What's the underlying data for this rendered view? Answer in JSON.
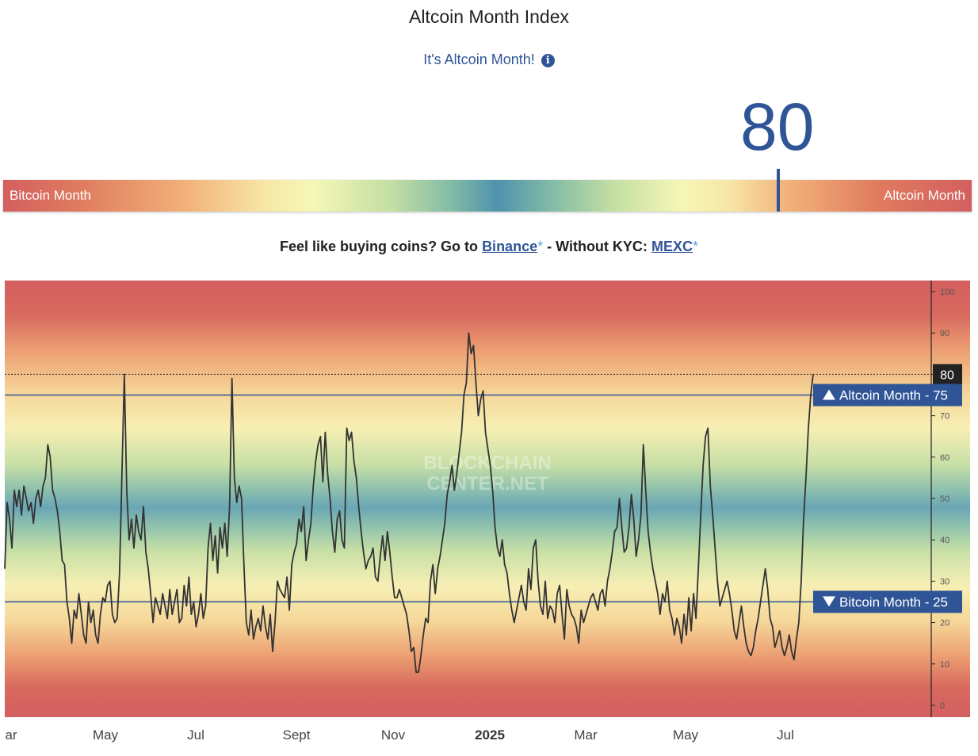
{
  "header": {
    "title": "Altcoin Month Index",
    "subtitle": "It's Altcoin Month!",
    "info_icon": "info-icon",
    "index_value": "80"
  },
  "gauge": {
    "left_label": "Bitcoin Month",
    "right_label": "Altcoin Month",
    "value": 80,
    "range": [
      0,
      100
    ]
  },
  "promo": {
    "prefix": "Feel like buying coins? Go to",
    "binance": "Binance",
    "star": "*",
    "middle": "- Without KYC:",
    "mexc": "MEXC"
  },
  "chart_data": {
    "type": "line",
    "watermark": [
      "BLOCKCHAIN",
      "CENTER.NET"
    ],
    "ylim": [
      0,
      100
    ],
    "y_ticks": [
      0,
      10,
      20,
      30,
      40,
      50,
      60,
      70,
      80,
      90,
      100
    ],
    "x_ticks": [
      "ar",
      "May",
      "Jul",
      "Sept",
      "Nov",
      "2025",
      "Mar",
      "May",
      "Jul"
    ],
    "current_value_label": "80",
    "current_value": 80,
    "thresholds": [
      {
        "label": "Altcoin Month - 75",
        "value": 75,
        "marker": "triangle-up-icon"
      },
      {
        "label": "Bitcoin Month - 25",
        "value": 25,
        "marker": "triangle-down-icon"
      }
    ],
    "colors": {
      "line": "#333333",
      "threshold": "#2f5597",
      "red": "#d35f5f",
      "blue": "#4f93ad"
    },
    "series": [
      {
        "values": [
          33,
          49,
          45,
          38,
          52,
          48,
          52,
          46,
          53,
          50,
          47,
          49,
          44,
          50,
          52,
          48,
          53,
          55,
          63,
          60,
          52,
          50,
          47,
          42,
          35,
          34,
          25,
          21,
          15,
          23,
          21,
          27,
          22,
          17,
          15,
          25,
          20,
          23,
          17,
          15,
          22,
          26,
          25,
          29,
          30,
          22,
          20,
          21,
          32,
          56,
          80,
          52,
          40,
          45,
          38,
          46,
          42,
          40,
          48,
          37,
          33,
          27,
          20,
          26,
          24,
          22,
          27,
          24,
          21,
          28,
          22,
          25,
          28,
          20,
          21,
          29,
          24,
          31,
          22,
          25,
          19,
          22,
          27,
          21,
          24,
          38,
          44,
          35,
          41,
          32,
          43,
          38,
          44,
          36,
          48,
          79,
          55,
          49,
          53,
          50,
          34,
          20,
          17,
          23,
          16,
          19,
          21,
          18,
          24,
          19,
          16,
          22,
          13,
          20,
          30,
          28,
          27,
          26,
          31,
          23,
          34,
          37,
          39,
          45,
          42,
          48,
          35,
          40,
          44,
          53,
          59,
          63,
          65,
          54,
          66,
          56,
          50,
          42,
          37,
          45,
          47,
          40,
          38,
          67,
          64,
          66,
          59,
          55,
          48,
          42,
          37,
          33,
          35,
          36,
          38,
          31,
          30,
          36,
          41,
          35,
          42,
          37,
          31,
          26,
          26,
          28,
          26,
          24,
          22,
          18,
          13,
          14,
          8,
          8,
          12,
          17,
          21,
          20,
          30,
          34,
          27,
          33,
          36,
          40,
          44,
          51,
          54,
          58,
          52,
          56,
          61,
          66,
          75,
          78,
          90,
          85,
          87,
          78,
          70,
          74,
          76,
          66,
          62,
          58,
          52,
          43,
          38,
          36,
          40,
          34,
          32,
          27,
          23,
          20,
          23,
          26,
          29,
          25,
          23,
          33,
          28,
          38,
          40,
          30,
          24,
          22,
          30,
          21,
          24,
          23,
          20,
          27,
          29,
          22,
          16,
          28,
          24,
          22,
          21,
          19,
          15,
          23,
          20,
          22,
          24,
          26,
          27,
          25,
          23,
          27,
          28,
          24,
          30,
          33,
          37,
          42,
          43,
          50,
          43,
          37,
          38,
          43,
          51,
          45,
          36,
          40,
          46,
          63,
          52,
          42,
          37,
          33,
          30,
          27,
          22,
          27,
          25,
          30,
          23,
          21,
          17,
          21,
          19,
          15,
          22,
          17,
          26,
          18,
          27,
          21,
          33,
          46,
          58,
          65,
          67,
          53,
          46,
          38,
          30,
          24,
          26,
          28,
          30,
          27,
          23,
          18,
          16,
          20,
          24,
          19,
          15,
          13,
          12,
          14,
          18,
          21,
          25,
          29,
          33,
          28,
          21,
          19,
          14,
          16,
          18,
          14,
          12,
          14,
          17,
          13,
          11,
          16,
          20,
          30,
          45,
          55,
          67,
          75,
          80
        ]
      }
    ]
  }
}
